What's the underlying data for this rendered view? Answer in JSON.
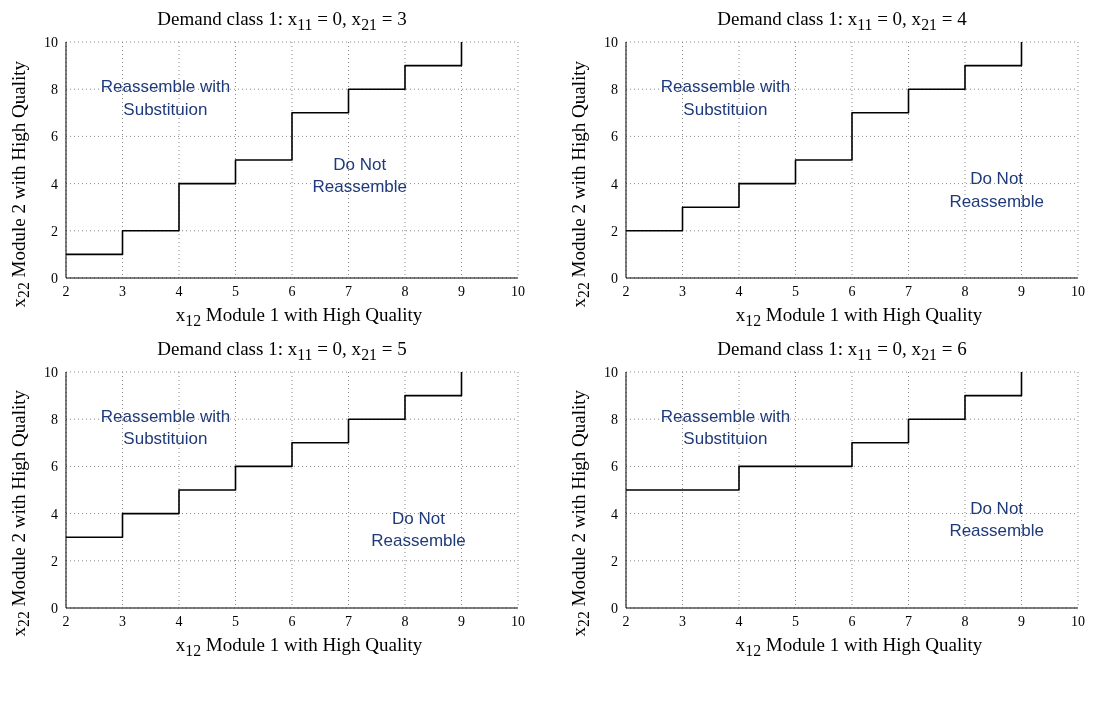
{
  "chart_data": [
    {
      "type": "step",
      "title": "Demand class 1: x$_{11}$ = 0, x$_{21}$ = 3",
      "xlabel": "x$_{12}$ Module 1 with High Quality",
      "ylabel": "x$_{22}$ Module 2 with High Quality",
      "x": [
        2,
        3,
        4,
        5,
        6,
        7,
        8,
        9
      ],
      "values": [
        1,
        2,
        4,
        5,
        7,
        8,
        9,
        10
      ],
      "color": "#000000",
      "xlim": [
        2,
        10
      ],
      "ylim": [
        0,
        10
      ],
      "xticks": [
        2,
        3,
        4,
        5,
        6,
        7,
        8,
        9,
        10
      ],
      "yticks": [
        0,
        2,
        4,
        6,
        8,
        10
      ],
      "grid": true,
      "marker": "none",
      "line_style": "solid",
      "annotations": [
        "Reassemble with\nSubstituion",
        "Do Not\nReassemble"
      ]
    },
    {
      "type": "step",
      "title": "Demand class 1: x$_{11}$ = 0, x$_{21}$ = 4",
      "xlabel": "x$_{12}$ Module 1 with High Quality",
      "ylabel": "x$_{22}$ Module 2 with High Quality",
      "x": [
        2,
        3,
        4,
        5,
        6,
        7,
        8,
        9
      ],
      "values": [
        2,
        3,
        4,
        5,
        7,
        8,
        9,
        10
      ],
      "color": "#000000",
      "xlim": [
        2,
        10
      ],
      "ylim": [
        0,
        10
      ],
      "xticks": [
        2,
        3,
        4,
        5,
        6,
        7,
        8,
        9,
        10
      ],
      "yticks": [
        0,
        2,
        4,
        6,
        8,
        10
      ],
      "grid": true,
      "marker": "none",
      "line_style": "solid",
      "annotations": [
        "Reassemble with\nSubstituion",
        "Do Not\nReassemble"
      ]
    },
    {
      "type": "step",
      "title": "Demand class 1: x$_{11}$ = 0, x$_{21}$ = 5",
      "xlabel": "x$_{12}$ Module 1 with High Quality",
      "ylabel": "x$_{22}$ Module 2 with High Quality",
      "x": [
        2,
        3,
        4,
        5,
        6,
        7,
        8,
        9
      ],
      "values": [
        3,
        4,
        5,
        6,
        7,
        8,
        9,
        10
      ],
      "color": "#000000",
      "xlim": [
        2,
        10
      ],
      "ylim": [
        0,
        10
      ],
      "xticks": [
        2,
        3,
        4,
        5,
        6,
        7,
        8,
        9,
        10
      ],
      "yticks": [
        0,
        2,
        4,
        6,
        8,
        10
      ],
      "grid": true,
      "marker": "none",
      "line_style": "solid",
      "annotations": [
        "Reassemble with\nSubstituion",
        "Do Not\nReassemble"
      ]
    },
    {
      "type": "step",
      "title": "Demand class 1: x$_{11}$ = 0, x$_{21}$ = 6",
      "xlabel": "x$_{12}$ Module 1 with High Quality",
      "ylabel": "x$_{22}$ Module 2 with High Quality",
      "x": [
        2,
        3,
        4,
        5,
        6,
        7,
        8,
        9
      ],
      "values": [
        5,
        5,
        6,
        6,
        7,
        8,
        9,
        10
      ],
      "color": "#000000",
      "xlim": [
        2,
        10
      ],
      "ylim": [
        0,
        10
      ],
      "xticks": [
        2,
        3,
        4,
        5,
        6,
        7,
        8,
        9,
        10
      ],
      "yticks": [
        0,
        2,
        4,
        6,
        8,
        10
      ],
      "grid": true,
      "marker": "none",
      "line_style": "solid",
      "annotations": [
        "Reassemble with\nSubstituion",
        "Do Not\nReassemble"
      ]
    }
  ]
}
